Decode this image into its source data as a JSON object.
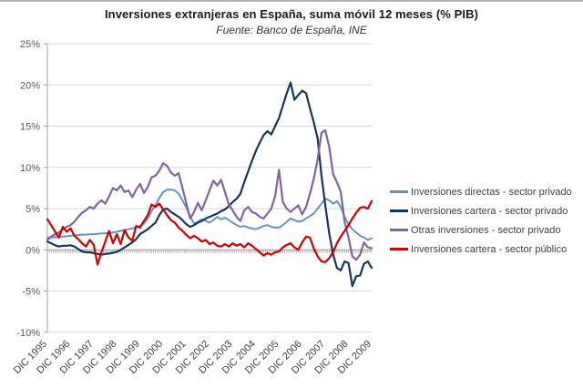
{
  "chart_data": {
    "type": "line",
    "title": "Inversiones extranjeras en España, suma móvil 12 meses (% PIB)",
    "subtitle": "Fuente: Banco de España, INE",
    "legend_position": "right",
    "grid": "horizontal",
    "x_axis": {
      "start": "1995-12",
      "step_months": 2,
      "tick_labels": [
        "DIC 1995",
        "DIC 1996",
        "DIC 1997",
        "DIC 1998",
        "DIC 1999",
        "DIC 2000",
        "DIC 2001",
        "DIC 2002",
        "DIC 2003",
        "DIC 2004",
        "DIC 2005",
        "DIC 2006",
        "DIC 2007",
        "DIC 2008",
        "DIC 2009"
      ]
    },
    "y_axis": {
      "min": -10,
      "max": 25,
      "step": 5,
      "unit": "% PIB",
      "tick_labels": [
        "25%",
        "20%",
        "15%",
        "10%",
        "5%",
        "0%",
        "-5%",
        "-10%"
      ]
    },
    "series": [
      {
        "name": "Inversiones directas - sector privado",
        "color": "#6594c0",
        "values": [
          1.5,
          1.5,
          1.55,
          1.5,
          1.6,
          1.65,
          1.7,
          1.75,
          1.8,
          1.85,
          1.85,
          1.9,
          1.9,
          1.95,
          2.0,
          2.0,
          2.05,
          2.1,
          2.2,
          2.3,
          2.4,
          2.5,
          2.6,
          2.75,
          2.9,
          3.2,
          3.8,
          4.7,
          5.4,
          6.3,
          7.0,
          7.3,
          7.3,
          7.2,
          6.8,
          6.0,
          5.1,
          4.0,
          3.2,
          3.4,
          3.7,
          3.5,
          3.3,
          3.6,
          4.0,
          3.7,
          3.9,
          3.6,
          3.3,
          3.0,
          2.8,
          2.9,
          2.7,
          2.6,
          2.5,
          2.7,
          2.9,
          3.0,
          2.8,
          2.7,
          2.7,
          3.0,
          3.4,
          3.8,
          3.6,
          3.4,
          3.5,
          3.8,
          4.1,
          4.4,
          5.0,
          5.6,
          6.2,
          6.0,
          5.6,
          5.9,
          5.2,
          4.0,
          3.1,
          2.5,
          2.1,
          1.7,
          1.5,
          1.2,
          1.4
        ]
      },
      {
        "name": "Inversiones cartera - sector privado",
        "color": "#17365d",
        "values": [
          1.0,
          0.8,
          0.55,
          0.4,
          0.5,
          0.5,
          0.55,
          0.4,
          0.1,
          -0.2,
          -0.3,
          -0.3,
          -0.4,
          -0.5,
          -0.6,
          -0.5,
          -0.45,
          -0.35,
          -0.25,
          0.0,
          0.3,
          0.6,
          0.9,
          1.3,
          1.9,
          2.2,
          2.5,
          2.9,
          3.3,
          4.2,
          4.9,
          5.0,
          4.6,
          4.3,
          4.0,
          3.6,
          3.1,
          2.8,
          3.0,
          3.3,
          3.5,
          3.8,
          4.0,
          4.2,
          4.4,
          4.7,
          4.9,
          5.3,
          5.8,
          6.2,
          6.8,
          8.2,
          9.5,
          10.8,
          12.0,
          13.0,
          13.9,
          14.4,
          14.0,
          15.0,
          16.0,
          17.5,
          19.0,
          20.3,
          18.2,
          18.8,
          19.3,
          19.0,
          17.2,
          15.5,
          13.5,
          9.0,
          5.4,
          2.0,
          -0.5,
          -2.2,
          -2.5,
          -1.4,
          -1.6,
          -4.4,
          -3.2,
          -3.1,
          -1.7,
          -1.4,
          -2.2
        ]
      },
      {
        "name": "Otras inversiones - sector privado",
        "color": "#8064a2",
        "values": [
          1.2,
          1.6,
          1.9,
          2.1,
          2.5,
          2.8,
          3.0,
          3.4,
          4.0,
          4.5,
          4.8,
          5.2,
          5.0,
          5.6,
          6.0,
          5.6,
          6.5,
          7.5,
          7.2,
          7.8,
          7.0,
          7.2,
          6.4,
          7.3,
          8.0,
          6.9,
          7.6,
          8.8,
          9.0,
          9.6,
          10.5,
          10.2,
          9.4,
          9.0,
          9.3,
          7.5,
          5.6,
          3.8,
          4.6,
          5.7,
          4.8,
          6.0,
          7.2,
          8.4,
          7.8,
          8.5,
          7.0,
          5.5,
          4.8,
          4.0,
          3.5,
          4.8,
          5.2,
          4.6,
          4.4,
          4.0,
          3.8,
          4.4,
          5.0,
          6.5,
          9.7,
          5.8,
          5.0,
          4.6,
          5.0,
          5.4,
          4.3,
          5.2,
          6.8,
          8.6,
          11.0,
          14.2,
          14.5,
          12.5,
          9.2,
          8.2,
          7.0,
          3.4,
          1.5,
          -0.8,
          -1.2,
          -0.6,
          0.9,
          0.3,
          0.2
        ]
      },
      {
        "name": "Inversiones cartera - sector público",
        "color": "#cc0000",
        "values": [
          3.7,
          3.0,
          2.2,
          1.5,
          2.8,
          2.2,
          2.6,
          1.7,
          1.3,
          0.8,
          0.4,
          1.2,
          0.6,
          -1.8,
          -0.3,
          1.0,
          2.3,
          0.8,
          1.9,
          0.7,
          2.4,
          1.5,
          1.1,
          2.9,
          2.7,
          3.5,
          4.2,
          5.5,
          5.2,
          5.6,
          4.9,
          4.2,
          3.6,
          3.3,
          2.7,
          2.3,
          1.8,
          1.4,
          1.7,
          1.4,
          1.0,
          1.2,
          0.7,
          0.9,
          0.5,
          0.4,
          0.7,
          0.4,
          0.8,
          0.5,
          0.7,
          0.3,
          0.8,
          0.5,
          0.1,
          -0.3,
          -0.7,
          -0.4,
          -0.6,
          -0.3,
          -0.2,
          0.3,
          0.6,
          0.8,
          0.3,
          0.0,
          0.9,
          1.6,
          1.5,
          0.2,
          -0.8,
          -1.4,
          -1.5,
          -1.0,
          -0.3,
          0.8,
          1.6,
          2.3,
          3.0,
          3.8,
          4.5,
          5.1,
          5.2,
          5.0,
          5.9
        ]
      }
    ]
  }
}
